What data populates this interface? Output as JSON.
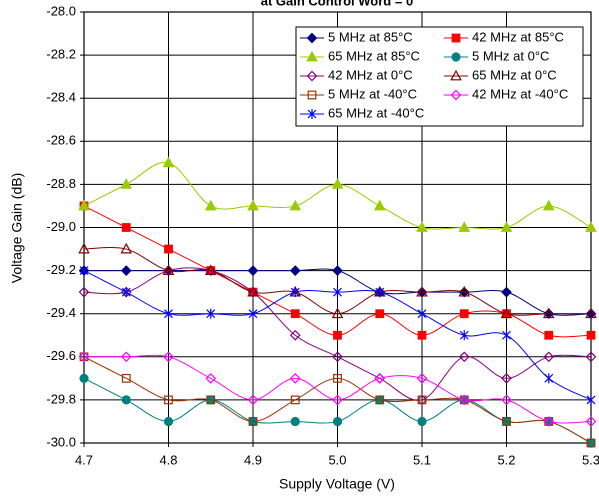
{
  "chart_data": {
    "type": "line",
    "title": "at Gain Control Word = 0",
    "x_label": "Supply Voltage (V)",
    "y_label": "Voltage Gain (dB)",
    "x": [
      4.7,
      4.75,
      4.8,
      4.85,
      4.9,
      4.95,
      5.0,
      5.05,
      5.1,
      5.15,
      5.2,
      5.25,
      5.3
    ],
    "xlim": [
      4.7,
      5.3
    ],
    "xticks": [
      4.7,
      4.8,
      4.9,
      {
        "value": 5,
        "label": "5.0"
      },
      5.1,
      5.2,
      5.3
    ],
    "ylim": [
      -30,
      -28
    ],
    "yticks": [
      {
        "value": -30,
        "label": "-30.0"
      },
      -29.8,
      -29.6,
      -29.4,
      -29.2,
      {
        "value": -29,
        "label": "-29.0"
      },
      -28.8,
      -28.6,
      -28.4,
      -28.2,
      {
        "value": -28,
        "label": "-28.0"
      }
    ],
    "grid": true,
    "legend": "top-right",
    "series": [
      {
        "name": "5 MHz at 85°C",
        "color": "#000080",
        "marker": "diamond",
        "filled": true,
        "values": [
          -29.2,
          -29.2,
          -29.2,
          -29.2,
          -29.2,
          -29.2,
          -29.2,
          -29.3,
          -29.3,
          -29.3,
          -29.3,
          -29.4,
          -29.4
        ]
      },
      {
        "name": "42 MHz at 85°C",
        "color": "#ff0000",
        "marker": "square",
        "filled": true,
        "values": [
          -28.9,
          -29.0,
          -29.1,
          -29.2,
          -29.3,
          -29.4,
          -29.5,
          -29.4,
          -29.5,
          -29.4,
          -29.4,
          -29.5,
          -29.5
        ]
      },
      {
        "name": "65 MHz at 85°C",
        "color": "#99cc00",
        "marker": "triangle",
        "filled": true,
        "values": [
          -28.9,
          -28.8,
          -28.7,
          -28.9,
          -28.9,
          -28.9,
          -28.8,
          -28.9,
          -29.0,
          -29.0,
          -29.0,
          -28.9,
          -29.0
        ]
      },
      {
        "name": "5 MHz at 0°C",
        "color": "#008080",
        "marker": "circle",
        "filled": true,
        "values": [
          -29.7,
          -29.8,
          -29.9,
          -29.8,
          -29.9,
          -29.9,
          -29.9,
          -29.8,
          -29.9,
          -29.8,
          -29.9,
          -29.9,
          -30.0
        ]
      },
      {
        "name": "42 MHz at 0°C",
        "color": "#800080",
        "marker": "diamond",
        "filled": false,
        "values": [
          -29.3,
          -29.3,
          -29.2,
          -29.2,
          -29.3,
          -29.5,
          -29.6,
          -29.7,
          -29.8,
          -29.6,
          -29.7,
          -29.6,
          -29.6
        ]
      },
      {
        "name": "65 MHz at 0°C",
        "color": "#800000",
        "marker": "triangle",
        "filled": false,
        "values": [
          -29.1,
          -29.1,
          -29.2,
          -29.2,
          -29.3,
          -29.3,
          -29.4,
          -29.3,
          -29.3,
          -29.3,
          -29.4,
          -29.4,
          -29.4
        ]
      },
      {
        "name": "5 MHz at -40°C",
        "color": "#993300",
        "marker": "square",
        "filled": false,
        "values": [
          -29.6,
          -29.7,
          -29.8,
          -29.8,
          -29.9,
          -29.8,
          -29.7,
          -29.8,
          -29.8,
          -29.8,
          -29.9,
          -29.9,
          -30.0
        ]
      },
      {
        "name": "42 MHz at -40°C",
        "color": "#ff00ff",
        "marker": "diamond",
        "filled": false,
        "values": [
          -29.6,
          -29.6,
          -29.6,
          -29.7,
          -29.8,
          -29.7,
          -29.8,
          -29.7,
          -29.7,
          -29.8,
          -29.8,
          -29.9,
          -29.9
        ]
      },
      {
        "name": "65 MHz at -40°C",
        "color": "#0000ff",
        "marker": "asterisk",
        "filled": false,
        "values": [
          -29.2,
          -29.3,
          -29.4,
          -29.4,
          -29.4,
          -29.3,
          -29.3,
          -29.3,
          -29.4,
          -29.5,
          -29.5,
          -29.7,
          -29.8
        ]
      }
    ]
  }
}
